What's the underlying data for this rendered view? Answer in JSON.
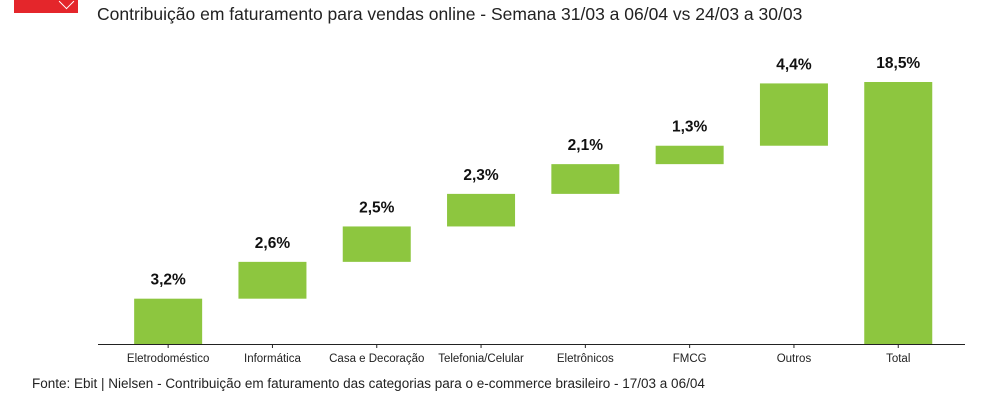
{
  "title": "Contribuição em faturamento para vendas online - Semana 31/03 a 06/04 vs 24/03 a 30/03",
  "source": "Fonte: Ebit | Nielsen - Contribuição em faturamento das categorias para o e-commerce brasileiro - 17/03 a 06/04",
  "colors": {
    "bar": "#8dc63f",
    "brand": "#e4262b",
    "axis": "#222222"
  },
  "chart_data": {
    "type": "bar",
    "subtype": "waterfall",
    "categories": [
      "Eletrodoméstico",
      "Informática",
      "Casa e Decoração",
      "Telefonia/Celular",
      "Eletrônicos",
      "FMCG",
      "Outros",
      "Total"
    ],
    "values": [
      3.2,
      2.6,
      2.5,
      2.3,
      2.1,
      1.3,
      4.4,
      18.5
    ],
    "data_labels": [
      "3,2%",
      "2,6%",
      "2,5%",
      "2,3%",
      "2,1%",
      "1,3%",
      "4,4%",
      "18,5%"
    ],
    "ylim": [
      0,
      18.5
    ],
    "grid": false,
    "legend": "none"
  }
}
